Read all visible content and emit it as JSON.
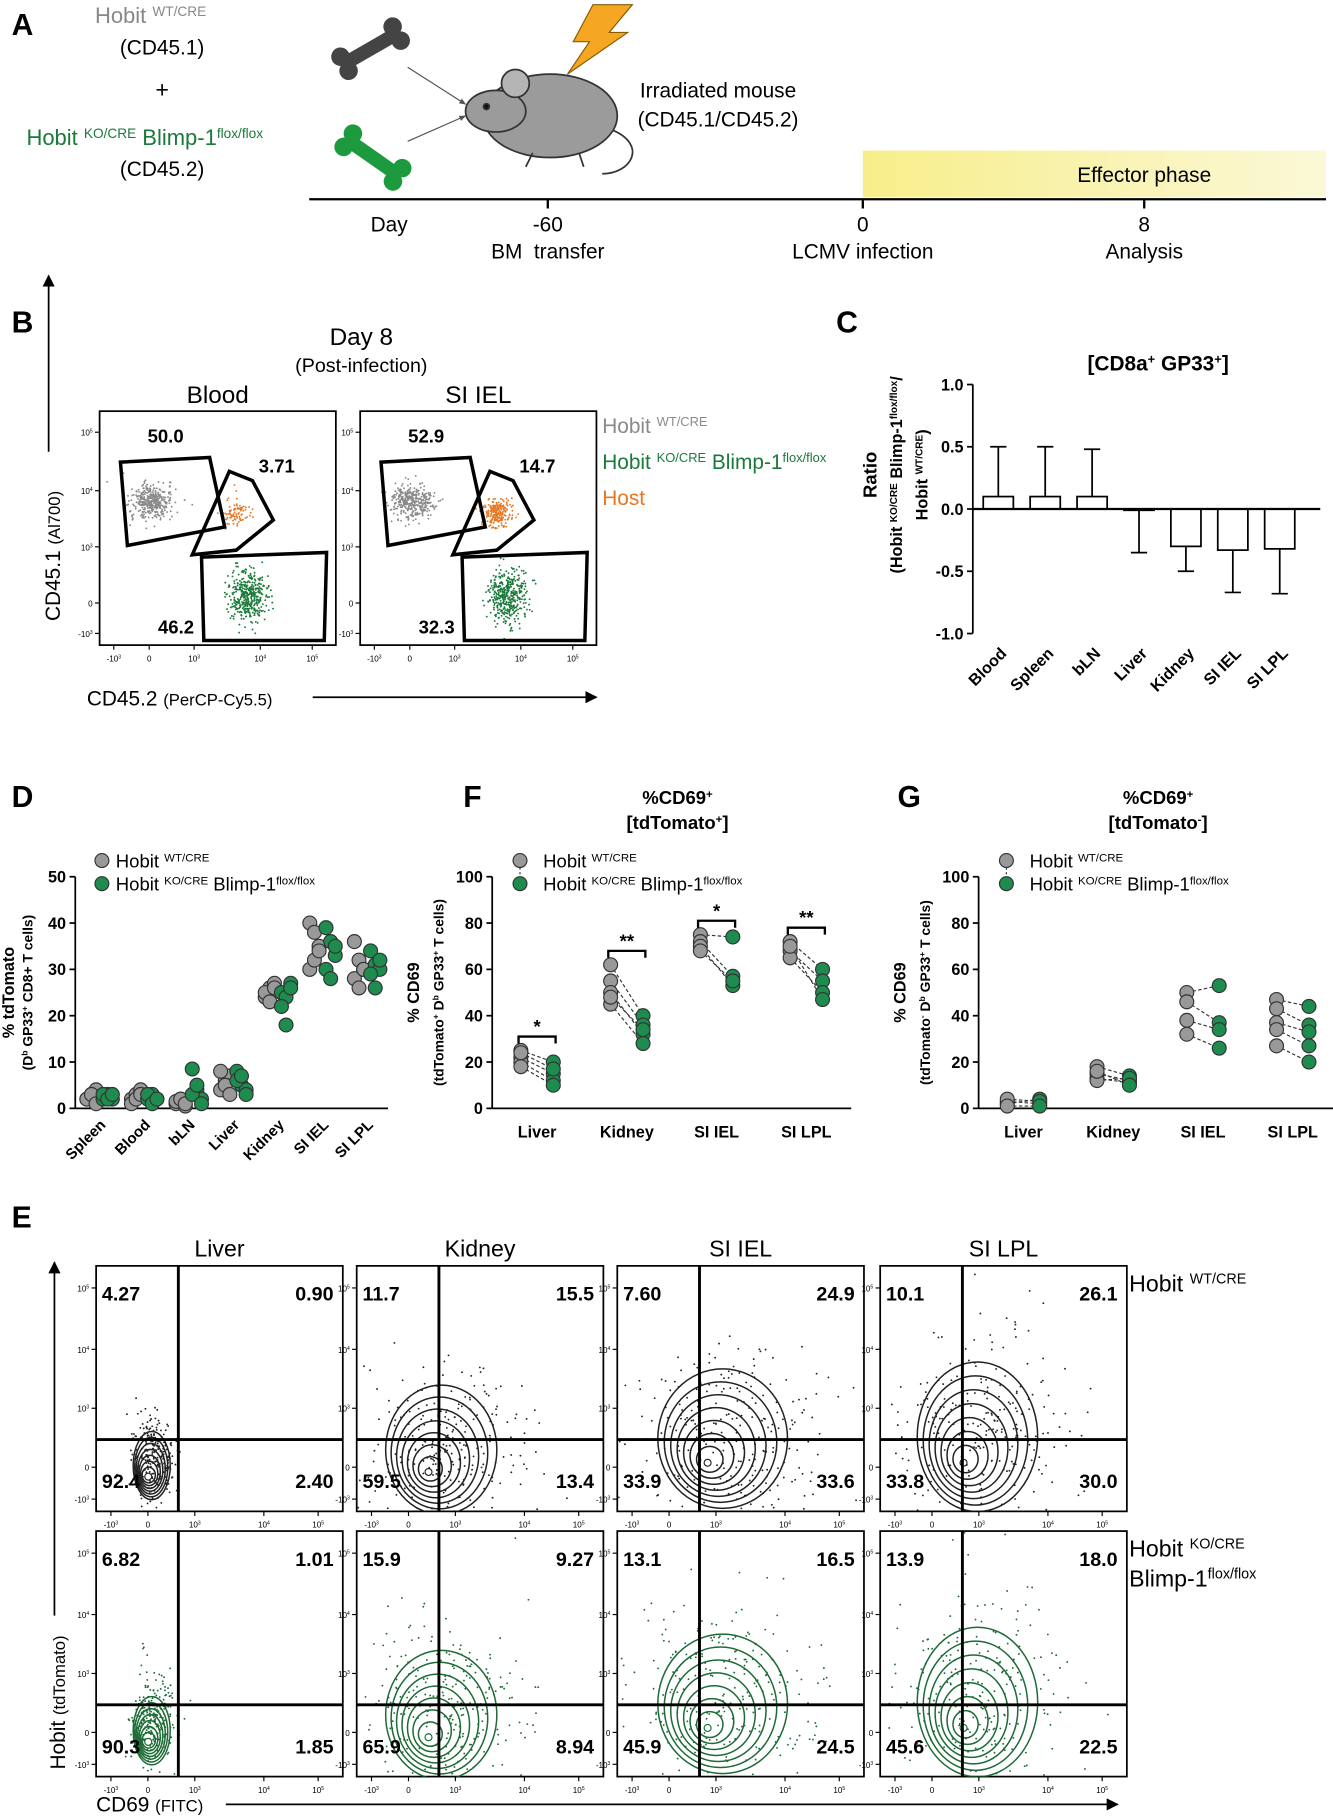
{
  "panel_a": {
    "label": "A",
    "donor_wt": {
      "name": [
        {
          "t": "Hobit "
        },
        {
          "sup": "WT/CRE"
        }
      ],
      "marker": "(CD45.1)"
    },
    "plus": "+",
    "donor_ko": {
      "name": [
        {
          "t": "Hobit "
        },
        {
          "sup": "KO/CRE"
        },
        {
          "t": " Blimp-1"
        },
        {
          "sup": "flox/flox"
        }
      ],
      "marker": "(CD45.2)"
    },
    "recipient": [
      "Irradiated mouse",
      "(CD45.1/CD45.2)"
    ],
    "phase": "Effector phase",
    "day_label": "Day",
    "timeline": [
      {
        "day": "-60",
        "event": "BM  transfer"
      },
      {
        "day": "0",
        "event": "LCMV infection"
      },
      {
        "day": "8",
        "event": "Analysis"
      }
    ]
  },
  "panel_b": {
    "label": "B",
    "title": [
      "Day 8",
      "(Post-infection)"
    ],
    "plots": [
      {
        "name": "Blood",
        "gates": [
          "50.0",
          "3.71",
          "46.2"
        ]
      },
      {
        "name": "SI IEL",
        "gates": [
          "52.9",
          "14.7",
          "32.3"
        ]
      }
    ],
    "legend": [
      {
        "label": [
          {
            "t": "Hobit "
          },
          {
            "sup": "WT/CRE"
          }
        ],
        "color": "#8a8a8a"
      },
      {
        "label": [
          {
            "t": "Hobit "
          },
          {
            "sup": "KO/CRE"
          },
          {
            "t": " Blimp-1"
          },
          {
            "sup": "flox/flox"
          }
        ],
        "color": "#1a7a3a"
      },
      {
        "label": "Host",
        "color": "#e87722"
      }
    ],
    "y_axis": [
      {
        "t": "CD45.1 "
      },
      {
        "small": "(Al700)"
      }
    ],
    "x_axis": [
      {
        "t": "CD45.2 "
      },
      {
        "small": "(PerCP-Cy5.5)"
      }
    ]
  },
  "flow_ticks": [
    [
      {
        "t": "10"
      },
      {
        "sup": "5"
      }
    ],
    [
      {
        "t": "10"
      },
      {
        "sup": "4"
      }
    ],
    [
      {
        "t": "10"
      },
      {
        "sup": "3"
      }
    ],
    [
      {
        "t": "0"
      }
    ],
    [
      {
        "t": "-10"
      },
      {
        "sup": "3"
      }
    ]
  ],
  "panel_c": {
    "label": "C",
    "chart": {
      "type": "bar",
      "title": [
        {
          "t": "[CD8a"
        },
        {
          "sup": "+"
        },
        {
          "t": " GP33"
        },
        {
          "sup": "+"
        },
        {
          "t": "]"
        }
      ],
      "y_label": [
        "Ratio",
        [
          {
            "t": "(Hobit "
          },
          {
            "sup": "KO/CRE"
          },
          {
            "t": " Blimp-1"
          },
          {
            "sup": "flox/flox"
          },
          {
            "t": "/"
          }
        ],
        [
          {
            "t": "Hobit "
          },
          {
            "sup": "WT/CRE"
          },
          {
            "t": ")"
          }
        ]
      ],
      "categories": [
        "Blood",
        "Spleen",
        "bLN",
        "Liver",
        "Kidney",
        "SI IEL",
        "SI LPL"
      ],
      "values": [
        0.1,
        0.1,
        0.1,
        -0.01,
        -0.3,
        -0.33,
        -0.32
      ],
      "errors": [
        0.4,
        0.4,
        0.38,
        0.34,
        0.2,
        0.34,
        0.36
      ],
      "color": "#ffffff",
      "ylim": [
        -1,
        1
      ],
      "yticks": [
        {
          "value": -1,
          "label": "-1.0"
        },
        -0.5,
        {
          "value": 0,
          "label": "0.0"
        },
        0.5,
        {
          "value": 1,
          "label": "1.0"
        }
      ]
    }
  },
  "panel_d": {
    "label": "D",
    "chart": {
      "type": "dot",
      "y_label": [
        "% tdTomato",
        [
          {
            "t": "(D"
          },
          {
            "sup": "b"
          },
          {
            "t": " GP33"
          },
          {
            "sup": "+"
          },
          {
            "t": " CD8+ T cells)"
          }
        ]
      ],
      "categories": [
        "Spleen",
        "Blood",
        "bLN",
        "Liver",
        "Kidney",
        "SI IEL",
        "SI LPL"
      ],
      "series": [
        {
          "name": [
            {
              "t": "Hobit "
            },
            {
              "sup": "WT/CRE"
            }
          ],
          "color": "#999999",
          "values": [
            [
              2,
              3,
              4,
              2,
              3,
              1
            ],
            [
              2,
              3,
              4,
              1,
              2,
              3
            ],
            [
              1,
              2,
              0.5,
              1.5,
              2,
              1
            ],
            [
              4,
              6,
              7,
              8,
              5,
              3
            ],
            [
              24,
              26,
              27,
              25,
              23,
              26
            ],
            [
              40,
              38,
              35,
              30,
              32,
              34
            ],
            [
              36,
              32,
              30,
              28,
              26,
              30
            ]
          ]
        },
        {
          "name": [
            {
              "t": "Hobit "
            },
            {
              "sup": "KO/CRE"
            },
            {
              "t": " Blimp-1"
            },
            {
              "sup": "flox/flox"
            }
          ],
          "color": "#1e8c4e",
          "values": [
            [
              2,
              3,
              2,
              3,
              2,
              3
            ],
            [
              2,
              3,
              2,
              3,
              1,
              2
            ],
            [
              8.5,
              4,
              2,
              3,
              5,
              1
            ],
            [
              8,
              5,
              4,
              6,
              7,
              3
            ],
            [
              25,
              24,
              27,
              22,
              18,
              26
            ],
            [
              39,
              36,
              33,
              30,
              28,
              35
            ],
            [
              34,
              31,
              30,
              29,
              26,
              32
            ]
          ]
        }
      ],
      "ylim": [
        0,
        50
      ],
      "yticks": [
        0,
        10,
        20,
        30,
        40,
        50
      ]
    }
  },
  "panel_f": {
    "label": "F",
    "chart": {
      "type": "paired",
      "title": [
        [
          {
            "t": "%CD69"
          },
          {
            "sup": "+"
          }
        ],
        [
          {
            "t": "[tdTomato"
          },
          {
            "sup": "+"
          },
          {
            "t": "]"
          }
        ]
      ],
      "y_label": [
        "% CD69",
        [
          {
            "t": "(tdTomato"
          },
          {
            "sup": "+"
          },
          {
            "t": " D"
          },
          {
            "sup": "b"
          },
          {
            "t": " GP33"
          },
          {
            "sup": "+"
          },
          {
            "t": " T cells)"
          }
        ]
      ],
      "categories": [
        "Liver",
        "Kidney",
        "SI IEL",
        "SI LPL"
      ],
      "series": [
        {
          "name": [
            {
              "t": "Hobit "
            },
            {
              "sup": "WT/CRE"
            }
          ],
          "color": "#999999",
          "values": [
            [
              25,
              22,
              20,
              18,
              24
            ],
            [
              62,
              55,
              50,
              45,
              48
            ],
            [
              75,
              72,
              70,
              68
            ],
            [
              72,
              68,
              65,
              70
            ]
          ]
        },
        {
          "name": [
            {
              "t": "Hobit "
            },
            {
              "sup": "KO/CRE"
            },
            {
              "t": " Blimp-1"
            },
            {
              "sup": "flox/flox"
            }
          ],
          "color": "#1e8c4e",
          "values": [
            [
              20,
              15,
              12,
              10,
              17
            ],
            [
              40,
              36,
              32,
              28,
              34
            ],
            [
              74,
              57,
              53,
              55
            ],
            [
              60,
              55,
              50,
              47
            ]
          ]
        }
      ],
      "significance": [
        "*",
        "**",
        "*",
        "**"
      ],
      "ylim": [
        0,
        100
      ],
      "yticks": [
        0,
        20,
        40,
        60,
        80,
        100
      ]
    }
  },
  "panel_g": {
    "label": "G",
    "chart": {
      "type": "paired",
      "title": [
        [
          {
            "t": "%CD69"
          },
          {
            "sup": "+"
          }
        ],
        [
          {
            "t": "[tdTomato"
          },
          {
            "sup": "-"
          },
          {
            "t": "]"
          }
        ]
      ],
      "y_label": [
        "% CD69",
        [
          {
            "t": "(tdTomato"
          },
          {
            "sup": "-"
          },
          {
            "t": " D"
          },
          {
            "sup": "b"
          },
          {
            "t": " GP33"
          },
          {
            "sup": "+"
          },
          {
            "t": " T cells)"
          }
        ]
      ],
      "categories": [
        "Liver",
        "Kidney",
        "SI IEL",
        "SI LPL"
      ],
      "series": [
        {
          "name": [
            {
              "t": "Hobit "
            },
            {
              "sup": "WT/CRE"
            }
          ],
          "color": "#999999",
          "values": [
            [
              3,
              2,
              4,
              1
            ],
            [
              18,
              15,
              13,
              12,
              16
            ],
            [
              50,
              46,
              38,
              32
            ],
            [
              47,
              43,
              37,
              34,
              27
            ]
          ]
        },
        {
          "name": [
            {
              "t": "Hobit "
            },
            {
              "sup": "KO/CRE"
            },
            {
              "t": " Blimp-1"
            },
            {
              "sup": "flox/flox"
            }
          ],
          "color": "#1e8c4e",
          "values": [
            [
              2,
              4,
              3,
              1
            ],
            [
              14,
              12,
              11,
              13,
              10
            ],
            [
              53,
              37,
              34,
              26
            ],
            [
              44,
              36,
              33,
              27,
              20
            ]
          ]
        }
      ],
      "ylim": [
        0,
        100
      ],
      "yticks": [
        0,
        20,
        40,
        60,
        80,
        100
      ]
    }
  },
  "panel_e": {
    "label": "E",
    "columns": [
      "Liver",
      "Kidney",
      "SI IEL",
      "SI LPL"
    ],
    "rows": [
      {
        "name": [
          [
            {
              "t": "Hobit "
            },
            {
              "sup": "WT/CRE"
            }
          ]
        ],
        "color": "#222222",
        "quadrants": [
          [
            "4.27",
            "0.90",
            "92.4",
            "2.40"
          ],
          [
            "11.7",
            "15.5",
            "59.5",
            "13.4"
          ],
          [
            "7.60",
            "24.9",
            "33.9",
            "33.6"
          ],
          [
            "10.1",
            "26.1",
            "33.8",
            "30.0"
          ]
        ]
      },
      {
        "name": [
          [
            {
              "t": "Hobit "
            },
            {
              "sup": "KO/CRE"
            }
          ],
          [
            {
              "t": "Blimp-1"
            },
            {
              "sup": "flox/flox"
            }
          ]
        ],
        "color": "#1d6b35",
        "quadrants": [
          [
            "6.82",
            "1.01",
            "90.3",
            "1.85"
          ],
          [
            "15.9",
            "9.27",
            "65.9",
            "8.94"
          ],
          [
            "13.1",
            "16.5",
            "45.9",
            "24.5"
          ],
          [
            "13.9",
            "18.0",
            "45.6",
            "22.5"
          ]
        ]
      }
    ],
    "y_axis": [
      {
        "t": "Hobit "
      },
      {
        "small": "(tdTomato)"
      }
    ],
    "x_axis": [
      {
        "t": "CD69 "
      },
      {
        "small": "(FITC)"
      }
    ]
  }
}
